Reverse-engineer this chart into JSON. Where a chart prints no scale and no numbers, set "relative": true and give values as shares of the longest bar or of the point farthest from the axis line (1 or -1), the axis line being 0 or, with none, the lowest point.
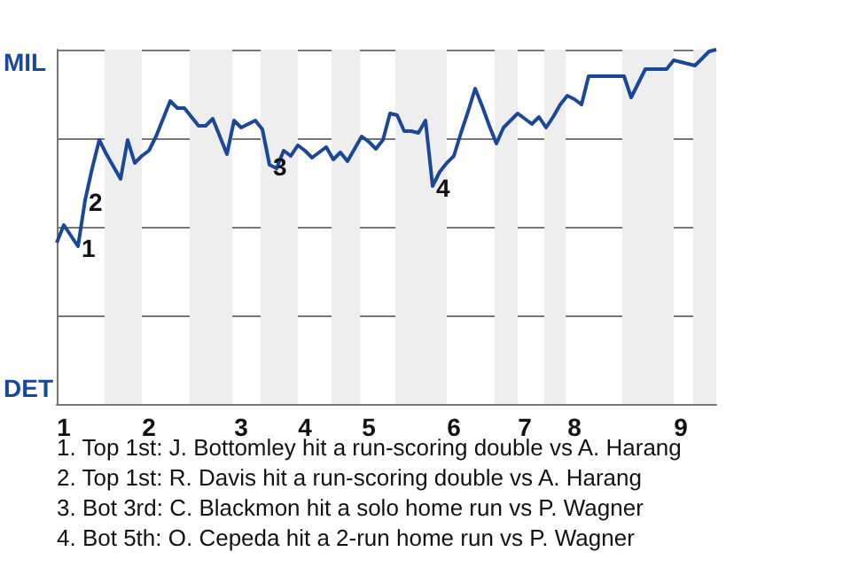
{
  "chart_data": {
    "type": "line",
    "categories": [
      null,
      "1",
      null,
      null,
      null,
      null,
      null,
      null,
      null,
      null,
      null,
      null,
      null,
      "2",
      null,
      null,
      null,
      null,
      null,
      null,
      null,
      null,
      null,
      null,
      null,
      null,
      "3",
      null,
      null,
      null,
      null,
      null,
      null,
      null,
      null,
      "4",
      null,
      null,
      null,
      null,
      null,
      null,
      null,
      null,
      "5",
      null,
      null,
      null,
      null,
      null,
      null,
      null,
      null,
      null,
      null,
      null,
      "6",
      null,
      null,
      null,
      null,
      null,
      null,
      null,
      null,
      null,
      "7",
      null,
      null,
      null,
      null,
      null,
      null,
      "8",
      null,
      null,
      null,
      null,
      null,
      null,
      null,
      null,
      null,
      null,
      null,
      null,
      null,
      null,
      "9",
      null,
      null,
      null,
      null,
      null
    ],
    "series": [
      {
        "color": "#1b4799",
        "values": [
          0.455,
          0.505,
          0.475,
          0.445,
          0.575,
          0.665,
          0.745,
          0.705,
          0.67,
          0.635,
          0.745,
          0.68,
          0.7,
          0.715,
          0.755,
          0.805,
          0.855,
          0.835,
          0.835,
          0.81,
          0.785,
          0.785,
          0.805,
          0.755,
          0.705,
          0.8,
          0.78,
          0.79,
          0.8,
          0.775,
          0.675,
          0.665,
          0.715,
          0.7,
          0.73,
          0.715,
          0.695,
          0.71,
          0.725,
          0.69,
          0.71,
          0.685,
          0.72,
          0.755,
          0.74,
          0.72,
          0.745,
          0.82,
          0.815,
          0.77,
          0.77,
          0.765,
          0.8,
          0.615,
          0.655,
          0.68,
          0.7,
          0.765,
          0.825,
          0.89,
          0.84,
          0.785,
          0.735,
          0.78,
          0.8,
          0.82,
          0.805,
          0.79,
          0.81,
          0.78,
          0.81,
          0.845,
          0.87,
          0.86,
          0.845,
          0.925,
          0.925,
          0.925,
          0.925,
          0.925,
          0.925,
          0.865,
          0.905,
          0.945,
          0.945,
          0.945,
          0.945,
          0.97,
          0.965,
          0.96,
          0.955,
          0.975,
          0.995,
          1
        ]
      }
    ],
    "relative": true,
    "grid": "y",
    "line_style": "solid",
    "annotations": [
      "MIL",
      "DET",
      {
        "text": "1",
        "y": 0.445
      },
      {
        "text": "2",
        "y": 0.575
      },
      {
        "text": "3",
        "y": 0.675
      },
      {
        "text": "4",
        "y": 0.615
      },
      "1. Top 1st: J. Bottomley hit a run-scoring double vs A. Harang",
      "2. Top 1st: R. Davis hit a run-scoring double vs A. Harang",
      "3. Bot 3rd: C. Blackmon hit a solo home run vs P. Wagner",
      "4. Bot 5th: O. Cepeda hit a 2-run home run vs P. Wagner"
    ]
  }
}
